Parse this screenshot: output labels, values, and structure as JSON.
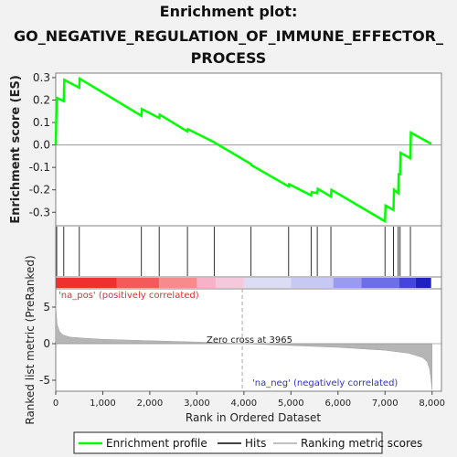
{
  "chart_data": {
    "type": "line",
    "title_lines": [
      "Enrichment plot:",
      "GO_NEGATIVE_REGULATION_OF_IMMUNE_EFFECTOR_",
      "PROCESS"
    ],
    "xlabel": "Rank in Ordered Dataset",
    "ylabel_top": "Enrichment score (ES)",
    "ylabel_bottom": "Ranked list metric (PreRanked)",
    "xlim": [
      0,
      8200
    ],
    "es_ylim": [
      -0.36,
      0.32
    ],
    "metric_ylim": [
      -6.5,
      7.5
    ],
    "x_ticks": [
      {
        "value": 0,
        "label": "0"
      },
      {
        "value": 1000,
        "label": "1,000"
      },
      {
        "value": 2000,
        "label": "2,000"
      },
      {
        "value": 3000,
        "label": "3,000"
      },
      {
        "value": 4000,
        "label": "4,000"
      },
      {
        "value": 5000,
        "label": "5,000"
      },
      {
        "value": 6000,
        "label": "6,000"
      },
      {
        "value": 7000,
        "label": "7,000"
      },
      {
        "value": 8000,
        "label": "8,000"
      }
    ],
    "es_ticks": [
      {
        "value": 0.3,
        "label": "0.3"
      },
      {
        "value": 0.2,
        "label": "0.2"
      },
      {
        "value": 0.1,
        "label": "0.1"
      },
      {
        "value": 0.0,
        "label": "0.0"
      },
      {
        "value": -0.1,
        "label": "-0.1"
      },
      {
        "value": -0.2,
        "label": "-0.2"
      },
      {
        "value": -0.3,
        "label": "-0.3"
      }
    ],
    "metric_ticks": [
      {
        "value": 5,
        "label": "5"
      },
      {
        "value": 0,
        "label": "0"
      },
      {
        "value": -5,
        "label": "-5"
      }
    ],
    "enrichment_profile": {
      "x": [
        0,
        20,
        170,
        180,
        500,
        510,
        1820,
        1830,
        2200,
        2210,
        2800,
        2810,
        3370,
        3380,
        4150,
        4160,
        4950,
        4960,
        5430,
        5440,
        5560,
        5570,
        5850,
        5860,
        7000,
        7010,
        7180,
        7190,
        7280,
        7290,
        7320,
        7330,
        7540,
        7550,
        7980
      ],
      "y": [
        0.0,
        0.21,
        0.195,
        0.29,
        0.255,
        0.295,
        0.13,
        0.16,
        0.12,
        0.135,
        0.06,
        0.07,
        0.012,
        0.01,
        -0.085,
        -0.09,
        -0.185,
        -0.175,
        -0.225,
        -0.21,
        -0.215,
        -0.195,
        -0.23,
        -0.2,
        -0.34,
        -0.27,
        -0.29,
        -0.2,
        -0.215,
        -0.13,
        -0.13,
        -0.035,
        -0.06,
        0.055,
        0.005
      ]
    },
    "hits": [
      20,
      170,
      500,
      1820,
      2200,
      2800,
      3370,
      4150,
      4950,
      5430,
      5560,
      5850,
      7000,
      7180,
      7280,
      7320,
      7540
    ],
    "metric_curve": {
      "x": [
        0,
        30,
        80,
        150,
        300,
        600,
        1000,
        2000,
        3000,
        3965,
        5000,
        6000,
        7000,
        7500,
        7800,
        7900,
        7950,
        7980,
        8000
      ],
      "y": [
        5.2,
        2.6,
        1.7,
        1.2,
        0.9,
        0.75,
        0.6,
        0.4,
        0.22,
        0.0,
        -0.25,
        -0.5,
        -0.9,
        -1.3,
        -1.9,
        -2.5,
        -3.5,
        -5.0,
        -6.3
      ]
    },
    "zero_cross_x": 3965,
    "heat_segments": [
      {
        "x0": 0,
        "x1": 1300,
        "color": "#f03030"
      },
      {
        "x0": 1300,
        "x1": 2200,
        "color": "#f55a5a"
      },
      {
        "x0": 2200,
        "x1": 3000,
        "color": "#f78a8a"
      },
      {
        "x0": 3000,
        "x1": 3400,
        "color": "#f7b2c8"
      },
      {
        "x0": 3400,
        "x1": 4000,
        "color": "#f5c8dc"
      },
      {
        "x0": 4000,
        "x1": 5000,
        "color": "#dcdcf5"
      },
      {
        "x0": 5000,
        "x1": 5900,
        "color": "#c8c8f5"
      },
      {
        "x0": 5900,
        "x1": 6500,
        "color": "#9a9af0"
      },
      {
        "x0": 6500,
        "x1": 7300,
        "color": "#6e6ee8"
      },
      {
        "x0": 7300,
        "x1": 7650,
        "color": "#4545dc"
      },
      {
        "x0": 7650,
        "x1": 7980,
        "color": "#2020c0"
      }
    ],
    "annotations": {
      "pos_label": "'na_pos' (positively correlated)",
      "neg_label": "'na_neg' (negatively correlated)",
      "zero_cross_label": "Zero cross at 3965"
    },
    "legend": {
      "placement": "bottom",
      "entries": [
        {
          "name": "Enrichment profile",
          "color": "#00ff00"
        },
        {
          "name": "Hits",
          "color": "#444444"
        },
        {
          "name": "Ranking metric scores",
          "color": "#c0c0c0"
        }
      ]
    }
  }
}
